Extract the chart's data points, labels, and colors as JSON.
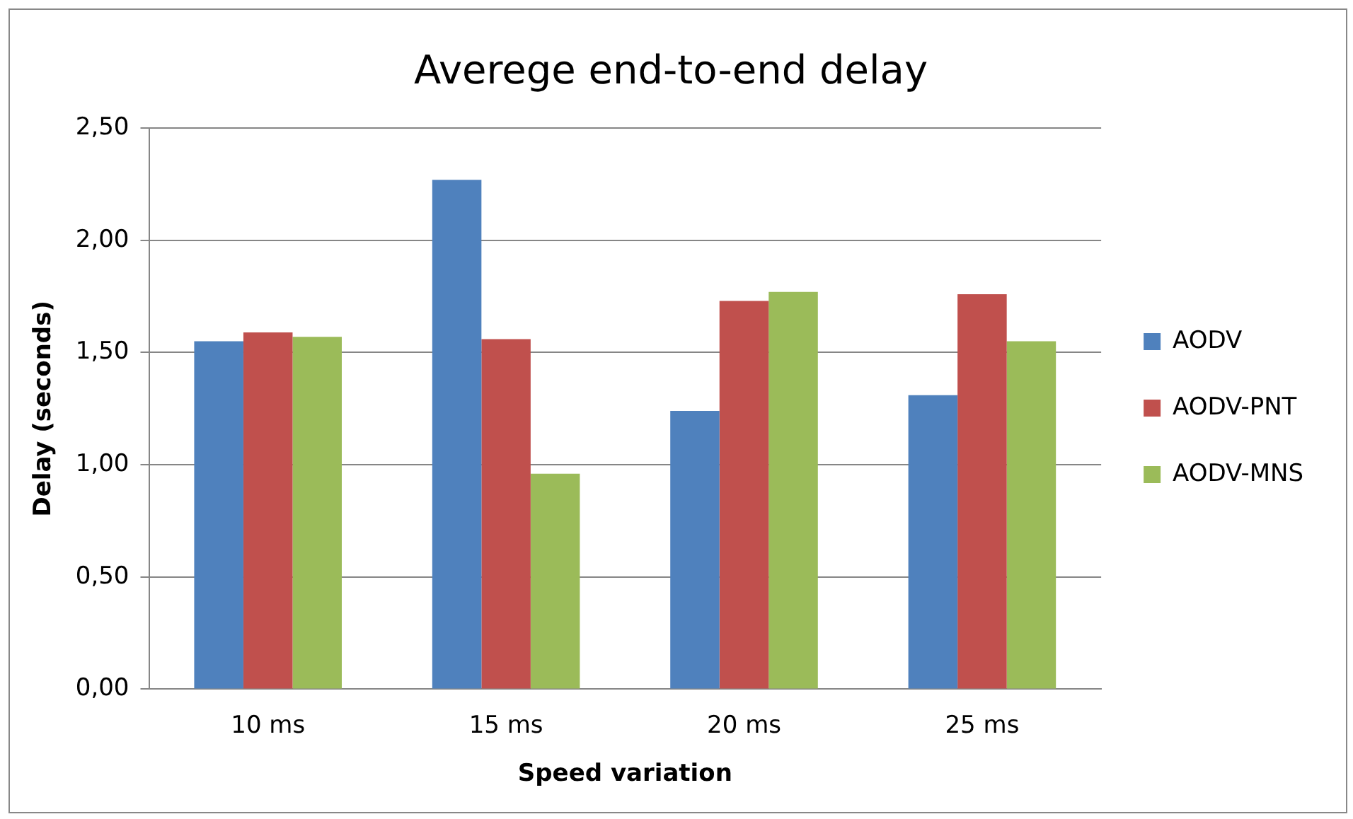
{
  "chart_data": {
    "type": "bar",
    "title": "Averege end-to-end delay",
    "xlabel": "Speed variation",
    "ylabel": "Delay (seconds)",
    "categories": [
      "10 ms",
      "15 ms",
      "20 ms",
      "25 ms"
    ],
    "series": [
      {
        "name": "AODV",
        "color": "#4f81bd",
        "values": [
          1.55,
          2.27,
          1.24,
          1.31
        ]
      },
      {
        "name": "AODV-PNT",
        "color": "#c0504d",
        "values": [
          1.59,
          1.56,
          1.73,
          1.76
        ]
      },
      {
        "name": "AODV-MNS",
        "color": "#9bbb59",
        "values": [
          1.57,
          0.96,
          1.77,
          1.55
        ]
      }
    ],
    "ylim": [
      0,
      2.5
    ],
    "yticks": [
      {
        "value": 0,
        "label": "0,00"
      },
      {
        "value": 0.5,
        "label": "0,50"
      },
      {
        "value": 1,
        "label": "1,00"
      },
      {
        "value": 1.5,
        "label": "1,50"
      },
      {
        "value": 2,
        "label": "2,00"
      },
      {
        "value": 2.5,
        "label": "2,50"
      }
    ],
    "grid": "y",
    "legend": "right"
  }
}
